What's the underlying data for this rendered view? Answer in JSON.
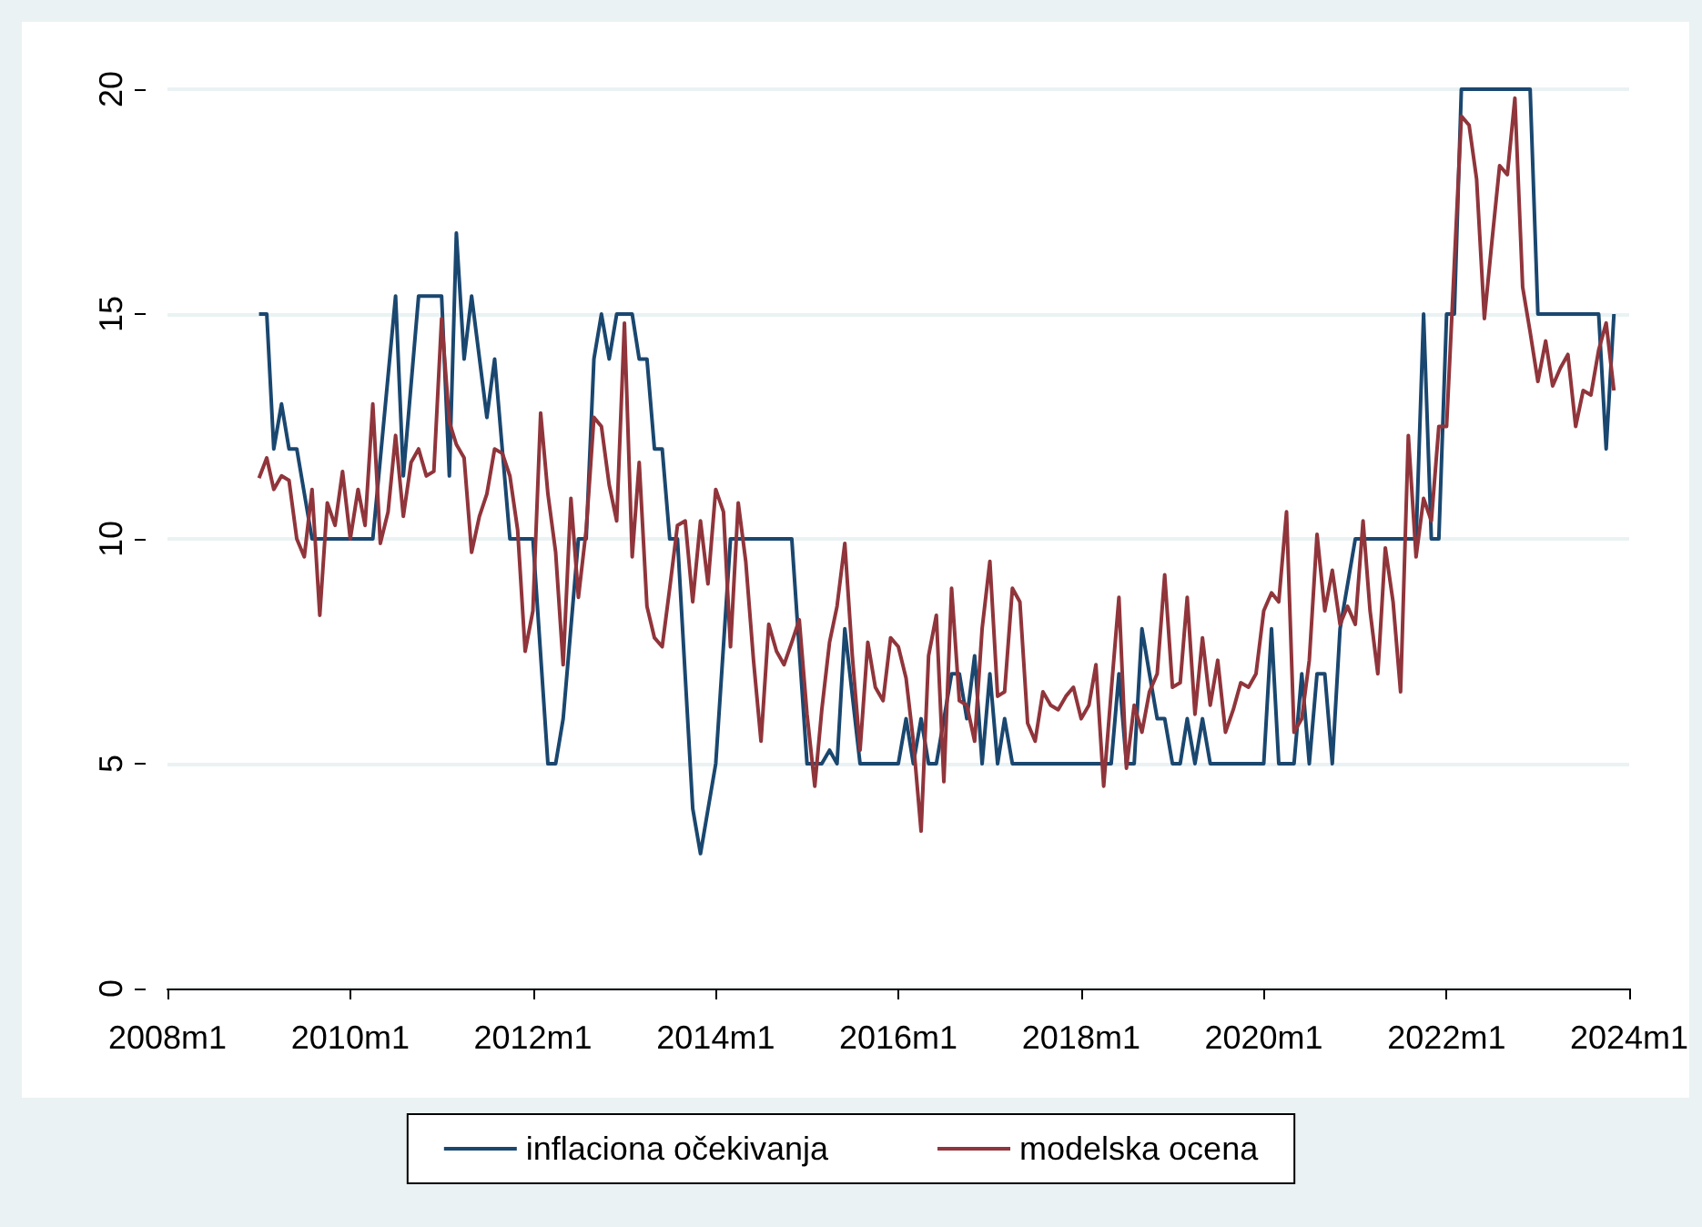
{
  "chart_data": {
    "type": "line",
    "series": [
      {
        "name": "inflaciona očekivanja",
        "color": "#1a476f",
        "x": [
          "2009-01",
          "2009-02",
          "2009-03",
          "2009-04",
          "2009-05",
          "2009-06",
          "2009-08",
          "2010-04",
          "2010-07",
          "2010-08",
          "2010-10",
          "2011-01",
          "2011-02",
          "2011-03",
          "2011-04",
          "2011-05",
          "2011-07",
          "2011-08",
          "2011-10",
          "2012-01",
          "2012-03",
          "2012-04",
          "2012-05",
          "2012-07",
          "2012-08",
          "2012-09",
          "2012-10",
          "2012-11",
          "2012-12",
          "2013-02",
          "2013-03",
          "2013-04",
          "2013-05",
          "2013-06",
          "2013-07",
          "2013-08",
          "2013-10",
          "2013-11",
          "2014-01",
          "2014-03",
          "2014-11",
          "2015-01",
          "2015-03",
          "2015-04",
          "2015-05",
          "2015-06",
          "2015-08",
          "2016-01",
          "2016-02",
          "2016-03",
          "2016-04",
          "2016-05",
          "2016-06",
          "2016-08",
          "2016-09",
          "2016-10",
          "2016-11",
          "2016-12",
          "2017-01",
          "2017-02",
          "2017-03",
          "2017-04",
          "2018-05",
          "2018-06",
          "2018-07",
          "2018-08",
          "2018-09",
          "2018-10",
          "2018-11",
          "2018-12",
          "2019-01",
          "2019-02",
          "2019-03",
          "2019-04",
          "2019-05",
          "2019-06",
          "2020-01",
          "2020-02",
          "2020-03",
          "2020-05",
          "2020-06",
          "2020-07",
          "2020-08",
          "2020-09",
          "2020-10",
          "2020-11",
          "2021-01",
          "2021-09",
          "2021-10",
          "2021-11",
          "2021-12",
          "2022-01",
          "2022-02",
          "2022-03",
          "2022-12",
          "2023-01",
          "2023-09",
          "2023-10",
          "2023-11"
        ],
        "values": [
          15,
          15,
          12,
          13,
          12,
          12,
          10,
          10,
          15.4,
          11.4,
          15.4,
          15.4,
          11.4,
          16.8,
          14,
          15.4,
          12.7,
          14,
          10,
          10,
          5,
          5,
          6,
          10,
          10,
          14,
          15,
          14,
          15,
          15,
          14,
          14,
          12,
          12,
          10,
          10,
          4,
          3,
          5,
          10,
          10,
          5,
          5,
          5.3,
          5,
          8,
          5,
          5,
          6,
          5,
          6,
          5,
          5,
          7,
          7,
          6,
          7.4,
          5,
          7,
          5,
          6,
          5,
          5,
          7,
          5,
          5,
          8,
          7,
          6,
          6,
          5,
          5,
          6,
          5,
          6,
          5,
          5,
          8,
          5,
          5,
          7,
          5,
          7,
          7,
          5,
          8,
          10,
          10,
          15,
          10,
          10,
          15,
          15,
          20,
          20,
          15,
          15,
          12,
          15
        ]
      },
      {
        "name": "modelska ocena",
        "color": "#90353b",
        "x": [
          "2009-01",
          "2009-02",
          "2009-03",
          "2009-04",
          "2009-05",
          "2009-06",
          "2009-07",
          "2009-08",
          "2009-09",
          "2009-10",
          "2009-11",
          "2009-12",
          "2010-01",
          "2010-02",
          "2010-03",
          "2010-04",
          "2010-05",
          "2010-06",
          "2010-07",
          "2010-08",
          "2010-09",
          "2010-10",
          "2010-11",
          "2010-12",
          "2011-01",
          "2011-02",
          "2011-03",
          "2011-04",
          "2011-05",
          "2011-06",
          "2011-07",
          "2011-08",
          "2011-09",
          "2011-10",
          "2011-11",
          "2011-12",
          "2012-01",
          "2012-02",
          "2012-03",
          "2012-04",
          "2012-05",
          "2012-06",
          "2012-07",
          "2012-08",
          "2012-09",
          "2012-10",
          "2012-11",
          "2012-12",
          "2013-01",
          "2013-02",
          "2013-03",
          "2013-04",
          "2013-05",
          "2013-06",
          "2013-07",
          "2013-08",
          "2013-09",
          "2013-10",
          "2013-11",
          "2013-12",
          "2014-01",
          "2014-02",
          "2014-03",
          "2014-04",
          "2014-05",
          "2014-06",
          "2014-07",
          "2014-08",
          "2014-09",
          "2014-10",
          "2014-11",
          "2014-12",
          "2015-01",
          "2015-02",
          "2015-03",
          "2015-04",
          "2015-05",
          "2015-06",
          "2015-07",
          "2015-08",
          "2015-09",
          "2015-10",
          "2015-11",
          "2015-12",
          "2016-01",
          "2016-02",
          "2016-03",
          "2016-04",
          "2016-05",
          "2016-06",
          "2016-07",
          "2016-08",
          "2016-09",
          "2016-10",
          "2016-11",
          "2016-12",
          "2017-01",
          "2017-02",
          "2017-03",
          "2017-04",
          "2017-05",
          "2017-06",
          "2017-07",
          "2017-08",
          "2017-09",
          "2017-10",
          "2017-11",
          "2017-12",
          "2018-01",
          "2018-02",
          "2018-03",
          "2018-04",
          "2018-05",
          "2018-06",
          "2018-07",
          "2018-08",
          "2018-09",
          "2018-10",
          "2018-11",
          "2018-12",
          "2019-01",
          "2019-02",
          "2019-03",
          "2019-04",
          "2019-05",
          "2019-06",
          "2019-07",
          "2019-08",
          "2019-09",
          "2019-10",
          "2019-11",
          "2019-12",
          "2020-01",
          "2020-02",
          "2020-03",
          "2020-04",
          "2020-05",
          "2020-06",
          "2020-07",
          "2020-08",
          "2020-09",
          "2020-10",
          "2020-11",
          "2020-12",
          "2021-01",
          "2021-02",
          "2021-03",
          "2021-04",
          "2021-05",
          "2021-06",
          "2021-07",
          "2021-08",
          "2021-09",
          "2021-10",
          "2021-11",
          "2021-12",
          "2022-01",
          "2022-03",
          "2022-04",
          "2022-05",
          "2022-06",
          "2022-07",
          "2022-08",
          "2022-09",
          "2022-10",
          "2022-11",
          "2022-12",
          "2023-01",
          "2023-02",
          "2023-03",
          "2023-04",
          "2023-05",
          "2023-06",
          "2023-07",
          "2023-08",
          "2023-09",
          "2023-10",
          "2023-11"
        ],
        "values": [
          11.35,
          11.8,
          11.1,
          11.4,
          11.3,
          10,
          9.6,
          11.1,
          8.3,
          10.8,
          10.3,
          11.5,
          10,
          11.1,
          10.3,
          13,
          9.9,
          10.6,
          12.3,
          10.5,
          11.7,
          12,
          11.4,
          11.5,
          14.9,
          12.6,
          12.1,
          11.8,
          9.7,
          10.5,
          11,
          12,
          11.9,
          11.4,
          10.2,
          7.5,
          8.4,
          12.8,
          11,
          9.7,
          7.2,
          10.9,
          8.7,
          10.2,
          12.7,
          12.5,
          11.2,
          10.4,
          14.8,
          9.6,
          11.7,
          8.5,
          7.8,
          7.6,
          8.9,
          10.3,
          10.4,
          8.6,
          10.4,
          9,
          11.1,
          10.6,
          7.6,
          10.8,
          9.5,
          7.3,
          5.5,
          8.1,
          7.5,
          7.2,
          7.7,
          8.2,
          6.1,
          4.5,
          6.2,
          7.7,
          8.5,
          9.9,
          7.4,
          5.3,
          7.7,
          6.7,
          6.4,
          7.8,
          7.6,
          6.9,
          5.5,
          3.5,
          7.4,
          8.3,
          4.6,
          8.9,
          6.4,
          6.3,
          5.5,
          8,
          9.5,
          6.5,
          6.6,
          8.9,
          8.6,
          5.9,
          5.5,
          6.6,
          6.3,
          6.2,
          6.5,
          6.7,
          6,
          6.3,
          7.2,
          4.5,
          6.6,
          8.7,
          4.9,
          6.3,
          5.7,
          6.6,
          7,
          9.2,
          6.7,
          6.8,
          8.7,
          6.1,
          7.8,
          6.3,
          7.3,
          5.7,
          6.2,
          6.8,
          6.7,
          7,
          8.4,
          8.8,
          8.6,
          10.6,
          5.7,
          6,
          7.3,
          10.1,
          8.4,
          9.3,
          8.1,
          8.5,
          8.1,
          10.4,
          8.4,
          7,
          9.8,
          8.6,
          6.6,
          12.3,
          9.6,
          10.9,
          10.4,
          12.5,
          12.5,
          19.4,
          19.2,
          18,
          14.9,
          16.6,
          18.3,
          18.1,
          19.8,
          15.6,
          14.6,
          13.5,
          14.4,
          13.4,
          13.8,
          14.1,
          12.5,
          13.3,
          13.2,
          14.2,
          14.8,
          13.3
        ]
      }
    ],
    "xlim": [
      "2008-01",
      "2024-01"
    ],
    "xticks": [
      {
        "value": "2008-01",
        "label": "2008m1"
      },
      {
        "value": "2010-01",
        "label": "2010m1"
      },
      {
        "value": "2012-01",
        "label": "2012m1"
      },
      {
        "value": "2014-01",
        "label": "2014m1"
      },
      {
        "value": "2016-01",
        "label": "2016m1"
      },
      {
        "value": "2018-01",
        "label": "2018m1"
      },
      {
        "value": "2020-01",
        "label": "2020m1"
      },
      {
        "value": "2022-01",
        "label": "2022m1"
      },
      {
        "value": "2024-01",
        "label": "2024m1"
      }
    ],
    "ylim": [
      0,
      20
    ],
    "yticks": [
      0,
      5,
      10,
      15,
      20
    ],
    "grid": "y",
    "legend": "bottom",
    "marker": "none",
    "line_style": "solid"
  }
}
